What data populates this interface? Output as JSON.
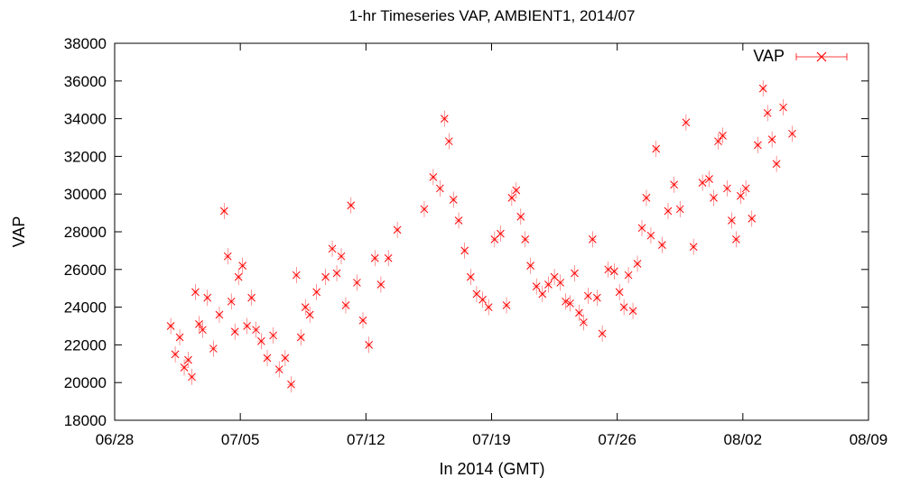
{
  "chart_data": {
    "type": "scatter",
    "title": "1-hr Timeseries VAP, AMBIENT1, 2014/07",
    "xlabel": "In 2014 (GMT)",
    "ylabel": "VAP",
    "xlim": [
      "2014-06-28",
      "2014-08-09"
    ],
    "ylim": [
      18000,
      38000
    ],
    "xticks": [
      "06/28",
      "07/05",
      "07/12",
      "07/19",
      "07/26",
      "08/02",
      "08/09"
    ],
    "yticks": [
      "18000",
      "20000",
      "22000",
      "24000",
      "26000",
      "28000",
      "30000",
      "32000",
      "34000",
      "36000",
      "38000"
    ],
    "grid": false,
    "legend_position": "top-right",
    "marker": "x",
    "error_bars": true,
    "color": "#ff0000",
    "series": [
      {
        "name": "VAP",
        "x": [
          "2014-07-01",
          "2014-07-01",
          "2014-07-01",
          "2014-07-01",
          "2014-07-02",
          "2014-07-02",
          "2014-07-02",
          "2014-07-02",
          "2014-07-02",
          "2014-07-03",
          "2014-07-03",
          "2014-07-03",
          "2014-07-04",
          "2014-07-04",
          "2014-07-04",
          "2014-07-04",
          "2014-07-04",
          "2014-07-05",
          "2014-07-05",
          "2014-07-05",
          "2014-07-05",
          "2014-07-06",
          "2014-07-06",
          "2014-07-06",
          "2014-07-07",
          "2014-07-07",
          "2014-07-07",
          "2014-07-08",
          "2014-07-08",
          "2014-07-08",
          "2014-07-08",
          "2014-07-09",
          "2014-07-09",
          "2014-07-10",
          "2014-07-10",
          "2014-07-10",
          "2014-07-10",
          "2014-07-11",
          "2014-07-11",
          "2014-07-11",
          "2014-07-12",
          "2014-07-12",
          "2014-07-12",
          "2014-07-13",
          "2014-07-13",
          "2014-07-15",
          "2014-07-15",
          "2014-07-16",
          "2014-07-16",
          "2014-07-16",
          "2014-07-16",
          "2014-07-17",
          "2014-07-17",
          "2014-07-17",
          "2014-07-18",
          "2014-07-18",
          "2014-07-18",
          "2014-07-19",
          "2014-07-19",
          "2014-07-19",
          "2014-07-20",
          "2014-07-20",
          "2014-07-20",
          "2014-07-20",
          "2014-07-21",
          "2014-07-21",
          "2014-07-21",
          "2014-07-22",
          "2014-07-22",
          "2014-07-22",
          "2014-07-23",
          "2014-07-23",
          "2014-07-23",
          "2014-07-23",
          "2014-07-24",
          "2014-07-24",
          "2014-07-24",
          "2014-07-24",
          "2014-07-25",
          "2014-07-25",
          "2014-07-25",
          "2014-07-26",
          "2014-07-26",
          "2014-07-26",
          "2014-07-26",
          "2014-07-27",
          "2014-07-27",
          "2014-07-27",
          "2014-07-27",
          "2014-07-28",
          "2014-07-28",
          "2014-07-28",
          "2014-07-29",
          "2014-07-29",
          "2014-07-29",
          "2014-07-30",
          "2014-07-30",
          "2014-07-31",
          "2014-07-31",
          "2014-07-31",
          "2014-07-31",
          "2014-08-01",
          "2014-08-01",
          "2014-08-01",
          "2014-08-01",
          "2014-08-02",
          "2014-08-02",
          "2014-08-02",
          "2014-08-03",
          "2014-08-03",
          "2014-08-03",
          "2014-08-03",
          "2014-08-04",
          "2014-08-04"
        ],
        "y": [
          23000,
          21500,
          22400,
          20800,
          21200,
          20300,
          24800,
          23100,
          22800,
          24500,
          21800,
          23600,
          29100,
          26700,
          24300,
          22700,
          25600,
          26200,
          23000,
          24500,
          22800,
          22200,
          21300,
          22500,
          20700,
          21300,
          19900,
          25700,
          22400,
          24000,
          23600,
          24800,
          25600,
          27100,
          25800,
          26700,
          24100,
          29400,
          25300,
          23300,
          22000,
          26600,
          25200,
          26600,
          28100,
          29200,
          30900,
          30300,
          34000,
          32800,
          29700,
          28600,
          27000,
          25600,
          24700,
          24400,
          24000,
          27600,
          27900,
          24100,
          29800,
          30200,
          28800,
          27600,
          26200,
          25100,
          24700,
          25200,
          25600,
          25300,
          24300,
          24200,
          25800,
          23700,
          23200,
          24600,
          27600,
          24500,
          22600,
          26000,
          25900,
          24800,
          24000,
          25700,
          23800,
          26300,
          28200,
          29800,
          27800,
          32400,
          27300,
          29100,
          30500,
          29200,
          33800,
          27200,
          30600,
          30800,
          29800,
          32800,
          33100,
          30300,
          28600,
          27600,
          29900,
          30300,
          28700,
          32600,
          35600,
          34300,
          32900,
          31600,
          34600,
          33200
        ],
        "values_note": ""
      }
    ]
  }
}
